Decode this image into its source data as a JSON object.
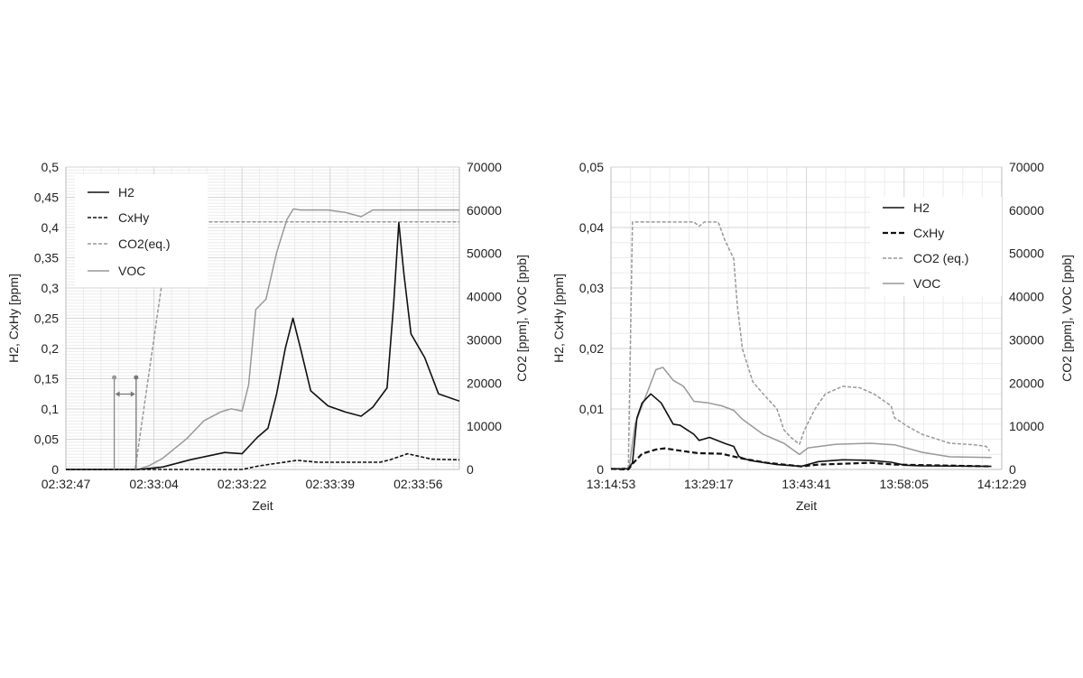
{
  "chart_data": [
    {
      "type": "line",
      "title": "",
      "xlabel": "Zeit",
      "ylabel_left": "H2, CxHy [ppm]",
      "ylabel_right": "CO2 [ppm], VOC [ppb]",
      "x_unit": "seconds after 02:32:47",
      "xlim": [
        0,
        77.3
      ],
      "ylim_left": [
        0,
        0.5
      ],
      "ylim_right": [
        0,
        70000
      ],
      "grid": true,
      "legend_position": "top-left",
      "x_ticks": [
        {
          "value": 0,
          "label": "02:32:47"
        },
        {
          "value": 17.3,
          "label": "02:33:04"
        },
        {
          "value": 34.6,
          "label": "02:33:22"
        },
        {
          "value": 51.9,
          "label": "02:33:39"
        },
        {
          "value": 69.2,
          "label": "02:33:56"
        }
      ],
      "y_left_ticks": [
        {
          "value": 0,
          "label": "0"
        },
        {
          "value": 0.05,
          "label": "0,05"
        },
        {
          "value": 0.1,
          "label": "0,1"
        },
        {
          "value": 0.15,
          "label": "0,15"
        },
        {
          "value": 0.2,
          "label": "0,2"
        },
        {
          "value": 0.25,
          "label": "0,25"
        },
        {
          "value": 0.3,
          "label": "0,3"
        },
        {
          "value": 0.35,
          "label": "0,35"
        },
        {
          "value": 0.4,
          "label": "0,4"
        },
        {
          "value": 0.45,
          "label": "0,45"
        },
        {
          "value": 0.5,
          "label": "0,5"
        }
      ],
      "y_right_ticks": [
        {
          "value": 0,
          "label": "0"
        },
        {
          "value": 10000,
          "label": "10000"
        },
        {
          "value": 20000,
          "label": "20000"
        },
        {
          "value": 30000,
          "label": "30000"
        },
        {
          "value": 40000,
          "label": "40000"
        },
        {
          "value": 50000,
          "label": "50000"
        },
        {
          "value": 60000,
          "label": "60000"
        },
        {
          "value": 70000,
          "label": "70000"
        }
      ],
      "series": [
        {
          "name": "H2",
          "axis": "left",
          "color": "#111111",
          "style": "solid",
          "x": [
            0,
            13.9,
            15.6,
            19.0,
            24.4,
            31.2,
            34.6,
            37.6,
            39.7,
            41.4,
            43.1,
            44.6,
            46.1,
            48.1,
            51.5,
            54.9,
            58.0,
            60.3,
            63.1,
            64.4,
            65.4,
            66.4,
            67.8,
            70.5,
            73.2,
            77.3
          ],
          "y": [
            0,
            0,
            0.001,
            0.004,
            0.016,
            0.028,
            0.026,
            0.053,
            0.068,
            0.125,
            0.2,
            0.25,
            0.2,
            0.13,
            0.105,
            0.095,
            0.088,
            0.103,
            0.135,
            0.274,
            0.408,
            0.324,
            0.224,
            0.185,
            0.125,
            0.113
          ]
        },
        {
          "name": "CxHy",
          "axis": "left",
          "color": "#111111",
          "style": "dashed",
          "x": [
            0,
            34.6,
            38.0,
            45.4,
            49.5,
            61.7,
            63.7,
            67.1,
            71.9,
            77.3
          ],
          "y": [
            0,
            0,
            0.006,
            0.015,
            0.012,
            0.012,
            0.016,
            0.026,
            0.017,
            0.016
          ]
        },
        {
          "name": "CO2(eq.)",
          "axis": "right",
          "color": "#999999",
          "style": "dashed",
          "x": [
            0,
            13.6,
            20.6,
            77.3
          ],
          "y": [
            0,
            0,
            57300,
            57300
          ]
        },
        {
          "name": "VOC",
          "axis": "right",
          "color": "#999999",
          "style": "solid",
          "x": [
            0,
            14.2,
            16.3,
            19.0,
            23.7,
            27.1,
            30.5,
            32.5,
            34.6,
            35.9,
            37.3,
            39.3,
            41.4,
            43.4,
            44.7,
            46.1,
            51.5,
            54.9,
            58.0,
            60.3,
            77.3
          ],
          "y": [
            0,
            0,
            830,
            2570,
            7090,
            11260,
            13350,
            14040,
            13490,
            19600,
            37000,
            39400,
            50200,
            57800,
            60300,
            60050,
            60050,
            59500,
            58500,
            60050,
            60050
          ]
        }
      ],
      "annotations": [
        {
          "type": "interval-marker",
          "x_start": 9.5,
          "x_end": 13.8,
          "height_left_axis": 0.152
        }
      ]
    },
    {
      "type": "line",
      "title": "",
      "xlabel": "Zeit",
      "ylabel_left": "H2, CxHy [ppm]",
      "ylabel_right": "CO2 [ppm], VOC [ppb]",
      "x_unit": "minutes after 13:14:53",
      "xlim": [
        0,
        57.6
      ],
      "ylim_left": [
        0,
        0.05
      ],
      "ylim_right": [
        0,
        70000
      ],
      "grid": true,
      "legend_position": "top-right",
      "x_ticks": [
        {
          "value": 0,
          "label": "13:14:53"
        },
        {
          "value": 14.4,
          "label": "13:29:17"
        },
        {
          "value": 28.8,
          "label": "13:43:41"
        },
        {
          "value": 43.2,
          "label": "13:58:05"
        },
        {
          "value": 57.6,
          "label": "14:12:29"
        }
      ],
      "y_left_ticks": [
        {
          "value": 0,
          "label": "0"
        },
        {
          "value": 0.01,
          "label": "0,01"
        },
        {
          "value": 0.02,
          "label": "0,02"
        },
        {
          "value": 0.03,
          "label": "0,03"
        },
        {
          "value": 0.04,
          "label": "0,04"
        },
        {
          "value": 0.05,
          "label": "0,05"
        }
      ],
      "y_right_ticks": [
        {
          "value": 0,
          "label": "0"
        },
        {
          "value": 10000,
          "label": "10000"
        },
        {
          "value": 20000,
          "label": "20000"
        },
        {
          "value": 30000,
          "label": "30000"
        },
        {
          "value": 40000,
          "label": "40000"
        },
        {
          "value": 50000,
          "label": "50000"
        },
        {
          "value": 60000,
          "label": "60000"
        },
        {
          "value": 70000,
          "label": "70000"
        }
      ],
      "series": [
        {
          "name": "H2",
          "axis": "left",
          "color": "#111111",
          "style": "solid",
          "x": [
            0,
            2.55,
            3.16,
            3.82,
            4.59,
            5.86,
            7.39,
            9.17,
            10.19,
            12.23,
            13.0,
            14.53,
            16.82,
            18.09,
            18.86,
            20.39,
            24.47,
            28.03,
            30.58,
            34.15,
            38.23,
            41.29,
            43.32,
            45.87,
            56.07
          ],
          "y": [
            0.0001,
            0.0001,
            0.0011,
            0.0085,
            0.011,
            0.0125,
            0.011,
            0.0075,
            0.0073,
            0.0058,
            0.0048,
            0.0053,
            0.0043,
            0.0038,
            0.0021,
            0.0015,
            0.0008,
            0.0005,
            0.0013,
            0.0016,
            0.0015,
            0.0012,
            0.0007,
            0.0006,
            0.0005
          ]
        },
        {
          "name": "CxHy",
          "axis": "left",
          "color": "#111111",
          "style": "dashed",
          "x": [
            0,
            2.55,
            3.31,
            4.59,
            6.63,
            7.9,
            10.19,
            12.74,
            16.31,
            19.37,
            22.94,
            28.03,
            30.58,
            38.23,
            41.8,
            56.07
          ],
          "y": [
            0.0001,
            0,
            0.0011,
            0.0026,
            0.0033,
            0.0035,
            0.0031,
            0.0027,
            0.0026,
            0.0018,
            0.0011,
            0.0005,
            0.0008,
            0.0011,
            0.0008,
            0.0005
          ]
        },
        {
          "name": "CO2 (eq.)",
          "axis": "right",
          "color": "#999999",
          "style": "dashed",
          "x": [
            0,
            2.55,
            3.16,
            12.23,
            13.0,
            13.76,
            15.8,
            16.82,
            18.09,
            18.6,
            19.37,
            20.9,
            22.43,
            24.47,
            25.49,
            26.5,
            27.78,
            28.54,
            30.07,
            31.6,
            34.15,
            36.7,
            38.74,
            41.29,
            41.8,
            43.83,
            45.87,
            49.95,
            53.52,
            55.3,
            55.81
          ],
          "y": [
            0,
            490,
            57280,
            57280,
            56300,
            57280,
            57280,
            52970,
            48800,
            38370,
            27940,
            20300,
            17500,
            14000,
            9170,
            7440,
            5840,
            9170,
            14000,
            17500,
            19250,
            18900,
            17500,
            14740,
            11960,
            9870,
            8130,
            6050,
            5700,
            5350,
            4310
          ]
        },
        {
          "name": "VOC",
          "axis": "right",
          "color": "#999999",
          "style": "solid",
          "x": [
            0,
            2.65,
            3.57,
            5.1,
            6.63,
            7.65,
            9.17,
            10.7,
            12.23,
            14.27,
            16.31,
            18.09,
            19.37,
            22.43,
            25.49,
            27.78,
            29.05,
            33.13,
            38.23,
            41.8,
            45.87,
            49.95,
            56.07
          ],
          "y": [
            150,
            150,
            10570,
            16820,
            23080,
            23630,
            20640,
            19250,
            15780,
            15430,
            14740,
            13690,
            11610,
            8130,
            6050,
            3475,
            5000,
            5840,
            6050,
            5700,
            3960,
            2920,
            2780
          ]
        }
      ],
      "annotations": []
    }
  ]
}
